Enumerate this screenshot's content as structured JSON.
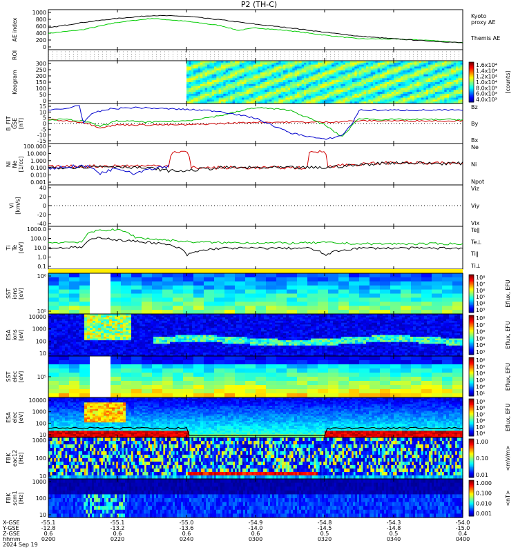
{
  "title": "P2 (TH-C)",
  "time_axis": {
    "start": "02:00",
    "end": "04:00",
    "labels": [
      "0200",
      "0220",
      "0240",
      "0300",
      "0320",
      "0340",
      "0400"
    ],
    "row_titles": [
      "X-GSE",
      "Y-GSE",
      "Z-GSE",
      "hhmm",
      "2024 Sep 19"
    ],
    "x_gse": [
      "-55.1",
      "-55.1",
      "-55.0",
      "-54.9",
      "-54.8",
      "-54.3",
      "-54.0"
    ],
    "y_gse": [
      "-12.8",
      "-13.2",
      "-13.6",
      "-14.0",
      "-14.5",
      "-14.8",
      "-15.0"
    ],
    "z_gse": [
      "0.6",
      "0.6",
      "0.6",
      "0.6",
      "0.5",
      "0.5",
      "0.4"
    ]
  },
  "chart_data": [
    {
      "name": "ae",
      "type": "line",
      "ylabel": "AE index",
      "ylim": [
        -100,
        1000
      ],
      "yticks": [
        "1000",
        "800",
        "600",
        "400",
        "200",
        "0"
      ],
      "grid": false,
      "series": [
        {
          "name": "Kyoto proxy AE",
          "label_lines": [
            "Kyoto",
            "proxy AE"
          ],
          "color": "#00cc00",
          "x": [
            0,
            10,
            20,
            30,
            40,
            50,
            55,
            60,
            70,
            80,
            90,
            100,
            110,
            120
          ],
          "y": [
            350,
            450,
            650,
            760,
            680,
            560,
            430,
            500,
            420,
            300,
            200,
            190,
            160,
            90
          ]
        },
        {
          "name": "Themis AE",
          "label_lines": [
            "Themis AE"
          ],
          "color": "#000000",
          "x": [
            0,
            10,
            20,
            30,
            40,
            50,
            60,
            70,
            80,
            90,
            100,
            110,
            120
          ],
          "y": [
            500,
            650,
            760,
            840,
            820,
            720,
            600,
            500,
            380,
            270,
            200,
            140,
            90
          ]
        }
      ]
    },
    {
      "name": "roi",
      "type": "line",
      "ylabel": "ROI",
      "yticks": [],
      "grid": true,
      "series": []
    },
    {
      "name": "keogram",
      "type": "heatmap",
      "ylabel": "Keogram",
      "ylim": [
        0,
        300
      ],
      "yticks": [
        "300",
        "250",
        "200",
        "150",
        "100",
        "50",
        "0"
      ],
      "data_start_minute": 40,
      "colorbar": {
        "unit": "[counts]",
        "ticks": [
          "1.6x10⁴",
          "1.4x10⁴",
          "1.2x10⁴",
          "1.0x10⁴",
          "8.0x10³",
          "6.0x10³",
          "4.0x10³"
        ]
      }
    },
    {
      "name": "bfit",
      "type": "line",
      "ylabel_lines": [
        "B_FIT",
        "GSE",
        "[nT]"
      ],
      "ylim": [
        -15,
        15
      ],
      "yticks": [
        "15",
        "10",
        "5",
        "0",
        "-5",
        "-10",
        "-15"
      ],
      "series": [
        {
          "name": "Bz",
          "color": "#d00000",
          "x": [
            0,
            5,
            10,
            15,
            20,
            30,
            40,
            50,
            60,
            70,
            80,
            90,
            100,
            110,
            120
          ],
          "y": [
            3,
            2,
            1,
            -3,
            -1,
            -1,
            -1,
            0,
            1,
            1,
            1,
            2,
            2,
            2,
            2
          ]
        },
        {
          "name": "By",
          "color": "#00bb00",
          "x": [
            0,
            5,
            10,
            15,
            20,
            30,
            40,
            50,
            60,
            70,
            80,
            85,
            90,
            95,
            100,
            110,
            120
          ],
          "y": [
            3,
            3,
            2,
            -2,
            2,
            1,
            2,
            6,
            12,
            10,
            -1,
            -10,
            4,
            3,
            3,
            3,
            3
          ]
        },
        {
          "name": "Bx",
          "color": "#0000cc",
          "x": [
            0,
            5,
            9,
            10,
            13,
            18,
            25,
            35,
            45,
            50,
            60,
            70,
            80,
            85,
            88,
            90,
            95,
            100,
            110,
            120
          ],
          "y": [
            10,
            11,
            14,
            0,
            8,
            11,
            12,
            11,
            10,
            9,
            4,
            -7,
            -12,
            -9,
            0,
            10,
            10,
            10,
            10,
            10
          ]
        }
      ]
    },
    {
      "name": "density",
      "type": "line",
      "ylabel_lines": [
        "Ni",
        "Ne",
        "[1/cc]"
      ],
      "ylim": [
        0.001,
        100
      ],
      "log": true,
      "yticks": [
        "100.000",
        "10.000",
        "1.000",
        "0.100",
        "0.010",
        "0.001"
      ],
      "series": [
        {
          "name": "Ne",
          "color": "#d00000",
          "x": [
            0,
            10,
            20,
            35,
            36,
            40,
            41,
            75,
            76,
            80,
            81,
            90,
            100,
            110,
            120
          ],
          "y": [
            0.15,
            0.18,
            0.2,
            0.2,
            10,
            10,
            0.12,
            0.12,
            10,
            10,
            0.2,
            0.3,
            0.5,
            0.4,
            0.4
          ]
        },
        {
          "name": "Ni",
          "color": "#000000",
          "x": [
            0,
            10,
            20,
            35,
            40,
            50,
            60,
            70,
            80,
            90,
            100,
            110,
            120
          ],
          "y": [
            0.12,
            0.15,
            0.18,
            0.05,
            0.05,
            0.12,
            0.12,
            0.12,
            0.12,
            0.25,
            0.5,
            0.4,
            0.4
          ]
        },
        {
          "name": "Npot",
          "color": "#0000cc",
          "x": [
            0,
            10,
            15,
            20,
            25,
            30,
            35
          ],
          "y": [
            0.1,
            0.2,
            0.02,
            0.1,
            0.02,
            0.1,
            0.2
          ]
        }
      ]
    },
    {
      "name": "velocity",
      "type": "line",
      "ylabel_lines": [
        "Vi",
        "[km/s]"
      ],
      "ylim": [
        -60,
        60
      ],
      "yticks": [
        "40",
        "20",
        "0",
        "-20",
        "-40"
      ],
      "series": [
        {
          "name": "Viz",
          "color": "#d00000",
          "x": [],
          "y": []
        },
        {
          "name": "Viy",
          "color": "#00bb00",
          "x": [],
          "y": []
        },
        {
          "name": "Vix",
          "color": "#0000cc",
          "x": [],
          "y": []
        }
      ]
    },
    {
      "name": "temperature",
      "type": "line",
      "ylabel_lines": [
        "Ti",
        "Te",
        "[eV]"
      ],
      "ylim": [
        0.1,
        5000
      ],
      "log": true,
      "yticks": [
        "1000.0",
        "100.0",
        "10.0",
        "1.0",
        "0.1"
      ],
      "series": [
        {
          "name": "Te‖",
          "color": "#000000",
          "x": [
            0,
            10,
            15,
            20,
            30,
            40,
            50,
            60,
            75,
            80,
            90,
            100,
            110,
            120
          ],
          "y": [
            20,
            25,
            300,
            150,
            80,
            3,
            20,
            20,
            20,
            3,
            20,
            20,
            20,
            20
          ]
        },
        {
          "name": "Te⊥",
          "color": "#d00000",
          "x": [],
          "y": []
        },
        {
          "name": "Ti‖",
          "color": "#00bb00",
          "x": [
            0,
            10,
            15,
            20,
            25,
            30,
            40,
            50,
            60,
            70,
            80,
            90,
            100,
            110,
            120
          ],
          "y": [
            80,
            100,
            2000,
            2000,
            300,
            200,
            100,
            80,
            80,
            70,
            80,
            60,
            60,
            60,
            60
          ]
        },
        {
          "name": "Ti⊥",
          "color": "#0000cc",
          "x": [],
          "y": []
        }
      ]
    },
    {
      "name": "sst_ion",
      "type": "heatmap",
      "ylabel_lines": [
        "SST",
        "ions",
        "[eV]"
      ],
      "yticks": [
        "10⁶",
        "10⁵"
      ],
      "gap_minutes": [
        10,
        18
      ],
      "colorbar": {
        "unit": "Eflux, EFU",
        "ticks": [
          "10⁸",
          "10⁷",
          "10⁶",
          "10⁵",
          "10⁴",
          "10³"
        ]
      }
    },
    {
      "name": "esa_ion",
      "type": "heatmap",
      "ylabel_lines": [
        "ESA",
        "ions",
        "[eV]"
      ],
      "yticks": [
        "10000",
        "1000",
        "100",
        "10"
      ],
      "colorbar": {
        "unit": "Eflux, EFU",
        "ticks": [
          "10⁸",
          "10⁷",
          "10⁶",
          "10⁵",
          "10⁴",
          "10³"
        ]
      }
    },
    {
      "name": "sst_elec",
      "type": "heatmap",
      "ylabel_lines": [
        "SST",
        "elec",
        "[eV]"
      ],
      "yticks": [
        "10⁵"
      ],
      "gap_minutes": [
        10,
        18
      ],
      "colorbar": {
        "unit": "Eflux, EFU",
        "ticks": [
          "10⁶",
          "10⁵",
          "10⁴",
          "10³",
          "10²",
          "10¹"
        ]
      }
    },
    {
      "name": "esa_elec",
      "type": "heatmap",
      "ylabel_lines": [
        "ESA",
        "elec",
        "[eV]"
      ],
      "yticks": [
        "10000",
        "1000",
        "100",
        "10"
      ],
      "colorbar": {
        "unit": "Eflux, EFU",
        "ticks": [
          "10⁹",
          "10⁸",
          "10⁷",
          "10⁶",
          "10⁵",
          "10⁴"
        ]
      }
    },
    {
      "name": "fbk_e",
      "type": "heatmap",
      "ylabel_lines": [
        "FBK",
        "eac12",
        "[Hz]"
      ],
      "yticks": [
        "1000",
        "100",
        "10"
      ],
      "colorbar": {
        "unit": "<mV/m>",
        "ticks": [
          "1.00",
          "0.10",
          "0.01"
        ]
      }
    },
    {
      "name": "fbk_b",
      "type": "heatmap",
      "ylabel_lines": [
        "FBK",
        "scm1",
        "[Hz]"
      ],
      "yticks": [
        "1000",
        "100",
        "10"
      ],
      "colorbar": {
        "unit": "<nT>",
        "ticks": [
          "1.000",
          "0.100",
          "0.010",
          "0.001"
        ]
      }
    }
  ]
}
